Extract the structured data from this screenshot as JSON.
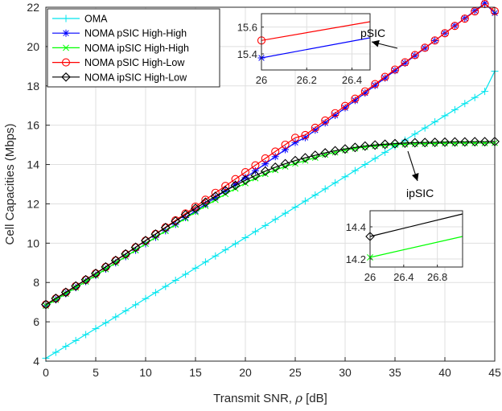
{
  "chart_data": {
    "type": "line",
    "title": "",
    "xlabel_main": "Transmit SNR, ",
    "xlabel_symbol": "ρ",
    "xlabel_unit": " [dB]",
    "ylabel": "Cell Capacities (Mbps)",
    "xlim": [
      0,
      45
    ],
    "ylim": [
      4,
      22
    ],
    "xticks": [
      0,
      5,
      10,
      15,
      20,
      25,
      30,
      35,
      40,
      45
    ],
    "yticks": [
      4,
      6,
      8,
      10,
      12,
      14,
      16,
      18,
      20,
      22
    ],
    "grid": true,
    "legend_position": "top-left",
    "x": [
      0,
      1,
      2,
      3,
      4,
      5,
      6,
      7,
      8,
      9,
      10,
      11,
      12,
      13,
      14,
      15,
      16,
      17,
      18,
      19,
      20,
      21,
      22,
      23,
      24,
      25,
      26,
      27,
      28,
      29,
      30,
      31,
      32,
      33,
      34,
      35,
      36,
      37,
      38,
      39,
      40,
      41,
      42,
      43,
      44,
      45
    ],
    "series": [
      {
        "name": "OMA",
        "color": "#00e5ee",
        "marker": "plus",
        "values": [
          4.15,
          4.45,
          4.75,
          5.05,
          5.35,
          5.65,
          5.95,
          6.25,
          6.56,
          6.87,
          7.18,
          7.49,
          7.8,
          8.11,
          8.42,
          8.73,
          9.04,
          9.35,
          9.66,
          9.97,
          10.28,
          10.59,
          10.9,
          11.21,
          11.52,
          11.83,
          12.14,
          12.45,
          12.76,
          13.07,
          13.38,
          13.69,
          14.0,
          14.31,
          14.62,
          14.93,
          15.24,
          15.55,
          15.86,
          16.17,
          16.48,
          16.79,
          17.1,
          17.41,
          17.72,
          18.75
        ]
      },
      {
        "name": "NOMA pSIC High-High",
        "color": "#0000ff",
        "marker": "asterisk",
        "values": [
          6.82,
          7.12,
          7.43,
          7.74,
          8.05,
          8.36,
          8.68,
          9.0,
          9.32,
          9.64,
          9.97,
          10.3,
          10.63,
          10.96,
          11.3,
          11.64,
          11.98,
          12.32,
          12.66,
          13.0,
          13.33,
          13.68,
          14.04,
          14.4,
          14.76,
          15.12,
          15.37,
          15.75,
          16.12,
          16.5,
          16.88,
          17.26,
          17.64,
          18.02,
          18.4,
          18.78,
          19.16,
          19.54,
          19.92,
          20.3,
          20.68,
          21.06,
          21.44,
          21.82,
          22.2,
          21.7
        ]
      },
      {
        "name": "NOMA ipSIC High-High",
        "color": "#00ff00",
        "marker": "x",
        "values": [
          6.82,
          7.12,
          7.43,
          7.74,
          8.05,
          8.36,
          8.68,
          9.0,
          9.32,
          9.64,
          9.97,
          10.3,
          10.62,
          10.94,
          11.26,
          11.58,
          11.9,
          12.2,
          12.5,
          12.78,
          13.05,
          13.3,
          13.52,
          13.72,
          13.9,
          14.05,
          14.2,
          14.35,
          14.5,
          14.62,
          14.73,
          14.82,
          14.89,
          14.94,
          14.98,
          15.01,
          15.03,
          15.05,
          15.06,
          15.07,
          15.08,
          15.08,
          15.09,
          15.09,
          15.09,
          15.1
        ]
      },
      {
        "name": "NOMA pSIC High-Low",
        "color": "#ff0000",
        "marker": "circle",
        "values": [
          6.88,
          7.19,
          7.5,
          7.82,
          8.14,
          8.46,
          8.79,
          9.12,
          9.45,
          9.79,
          10.13,
          10.47,
          10.81,
          11.16,
          11.51,
          11.86,
          12.21,
          12.56,
          12.91,
          13.26,
          13.61,
          13.96,
          14.31,
          14.66,
          15.01,
          15.36,
          15.5,
          15.87,
          16.24,
          16.61,
          16.98,
          17.35,
          17.72,
          18.09,
          18.46,
          18.83,
          19.2,
          19.57,
          19.94,
          20.31,
          20.68,
          21.05,
          21.42,
          21.79,
          22.16,
          21.8
        ]
      },
      {
        "name": "NOMA ipSIC High-Low",
        "color": "#000000",
        "marker": "diamond",
        "values": [
          6.88,
          7.19,
          7.5,
          7.82,
          8.14,
          8.46,
          8.79,
          9.12,
          9.45,
          9.79,
          10.13,
          10.46,
          10.79,
          11.12,
          11.45,
          11.77,
          12.08,
          12.38,
          12.67,
          12.94,
          13.2,
          13.44,
          13.66,
          13.86,
          14.04,
          14.2,
          14.34,
          14.47,
          14.59,
          14.7,
          14.79,
          14.87,
          14.94,
          14.99,
          15.03,
          15.06,
          15.09,
          15.11,
          15.12,
          15.13,
          15.14,
          15.15,
          15.15,
          15.16,
          15.16,
          15.17
        ]
      }
    ],
    "insets": [
      {
        "id": "pSIC",
        "label": "pSIC",
        "xlim": [
          26,
          26.48
        ],
        "ylim": [
          15.28,
          15.7
        ],
        "xticks": [
          26,
          26.2,
          26.4
        ],
        "yticks": [
          15.4,
          15.6
        ],
        "lines": [
          {
            "series": "NOMA pSIC High-Low",
            "color": "#ff0000",
            "marker": "circle",
            "x": [
              26,
              26.48
            ],
            "y": [
              15.5,
              15.64
            ]
          },
          {
            "series": "NOMA pSIC High-High",
            "color": "#0000ff",
            "marker": "asterisk",
            "x": [
              26,
              26.48
            ],
            "y": [
              15.37,
              15.52
            ]
          }
        ]
      },
      {
        "id": "ipSIC",
        "label": "ipSIC",
        "xlim": [
          26,
          27.1
        ],
        "ylim": [
          14.15,
          14.5
        ],
        "xticks": [
          26,
          26.4,
          26.8
        ],
        "yticks": [
          14.2,
          14.4
        ],
        "lines": [
          {
            "series": "NOMA ipSIC High-Low",
            "color": "#000000",
            "marker": "diamond",
            "x": [
              26,
              27.1
            ],
            "y": [
              14.34,
              14.48
            ]
          },
          {
            "series": "NOMA ipSIC High-High",
            "color": "#00ff00",
            "marker": "x",
            "x": [
              26,
              27.1
            ],
            "y": [
              14.21,
              14.34
            ]
          }
        ]
      }
    ]
  }
}
